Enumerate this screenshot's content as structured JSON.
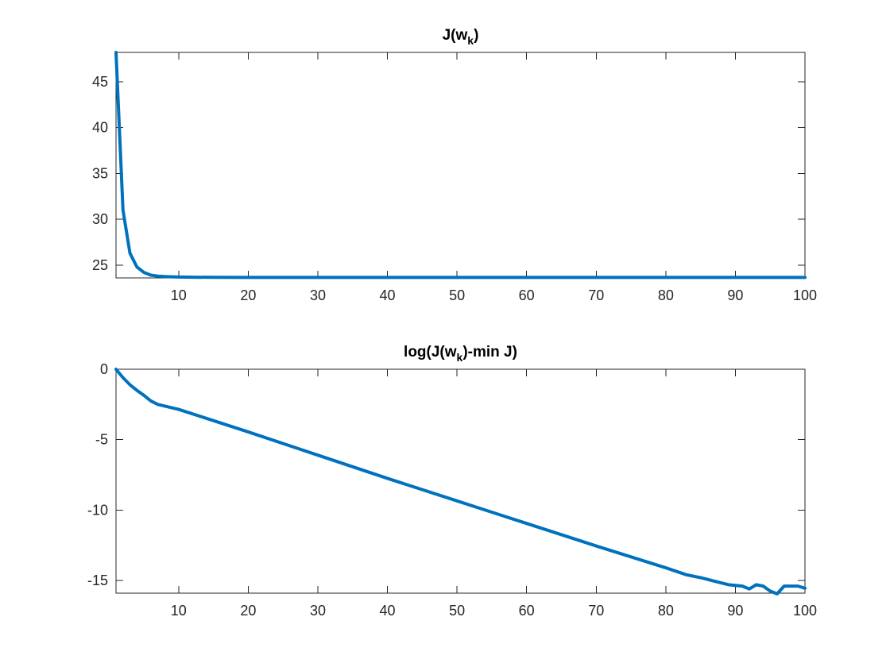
{
  "chart_data": [
    {
      "type": "line",
      "title": "J(w_k)",
      "title_parts": {
        "pre": "J(w",
        "sub": "k",
        "post": ")"
      },
      "xlim": [
        1,
        100
      ],
      "ylim": [
        23.6,
        48.2
      ],
      "xticks": [
        10,
        20,
        30,
        40,
        50,
        60,
        70,
        80,
        90,
        100
      ],
      "yticks": [
        25,
        30,
        35,
        40,
        45
      ],
      "grid": false,
      "series": [
        {
          "color": "#0072BD",
          "x": [
            1,
            2,
            3,
            4,
            5,
            6,
            7,
            8,
            9,
            10,
            12,
            15,
            20,
            30,
            40,
            50,
            60,
            70,
            80,
            90,
            100
          ],
          "y": [
            48.2,
            31.0,
            26.3,
            24.8,
            24.2,
            23.9,
            23.8,
            23.75,
            23.72,
            23.7,
            23.68,
            23.66,
            23.65,
            23.65,
            23.65,
            23.65,
            23.65,
            23.65,
            23.65,
            23.65,
            23.65
          ]
        }
      ]
    },
    {
      "type": "line",
      "title": "log(J(w_k)-min J)",
      "title_parts": {
        "pre": "log(J(w",
        "sub": "k",
        "post": ")-min J)"
      },
      "xlim": [
        1,
        100
      ],
      "ylim": [
        -15.9,
        0
      ],
      "xticks": [
        10,
        20,
        30,
        40,
        50,
        60,
        70,
        80,
        90,
        100
      ],
      "yticks": [
        0,
        -5,
        -10,
        -15
      ],
      "grid": false,
      "series": [
        {
          "color": "#0072BD",
          "x": [
            1,
            2,
            3,
            4,
            5,
            6,
            7,
            10,
            20,
            30,
            40,
            50,
            60,
            70,
            80,
            83,
            85,
            87,
            89,
            91,
            92,
            93,
            94,
            95,
            96,
            97,
            98,
            99,
            100
          ],
          "y": [
            0,
            -0.6,
            -1.1,
            -1.5,
            -1.85,
            -2.25,
            -2.5,
            -2.85,
            -4.45,
            -6.1,
            -7.75,
            -9.35,
            -10.95,
            -12.55,
            -14.1,
            -14.6,
            -14.8,
            -15.05,
            -15.3,
            -15.4,
            -15.6,
            -15.3,
            -15.4,
            -15.75,
            -15.95,
            -15.4,
            -15.4,
            -15.4,
            -15.55
          ]
        }
      ]
    }
  ]
}
